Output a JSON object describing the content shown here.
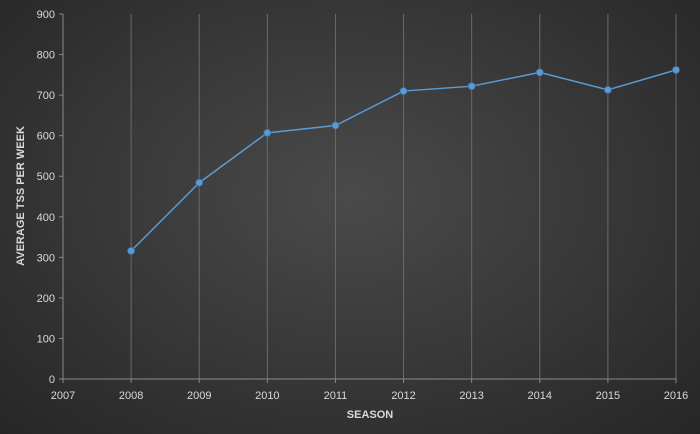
{
  "chart_data": {
    "type": "line",
    "x": [
      2008,
      2009,
      2010,
      2011,
      2012,
      2013,
      2014,
      2015,
      2016
    ],
    "y": [
      316,
      484,
      607,
      625,
      710,
      722,
      756,
      713,
      762
    ],
    "xlabel": "SEASON",
    "ylabel": "AVERAGE TSS PER WEEK",
    "xlim": [
      2007,
      2016
    ],
    "ylim": [
      0,
      900
    ],
    "x_ticks": [
      2007,
      2008,
      2009,
      2010,
      2011,
      2012,
      2013,
      2014,
      2015,
      2016
    ],
    "y_ticks": [
      0,
      100,
      200,
      300,
      400,
      500,
      600,
      700,
      800,
      900
    ],
    "grid": "vertical",
    "legend": "none",
    "colors": {
      "line": "#5b9bd5",
      "marker": "#5b9bd5",
      "grid": "#6a6a6a",
      "text": "#d9d9d9",
      "background": "#3a3a3a"
    }
  }
}
